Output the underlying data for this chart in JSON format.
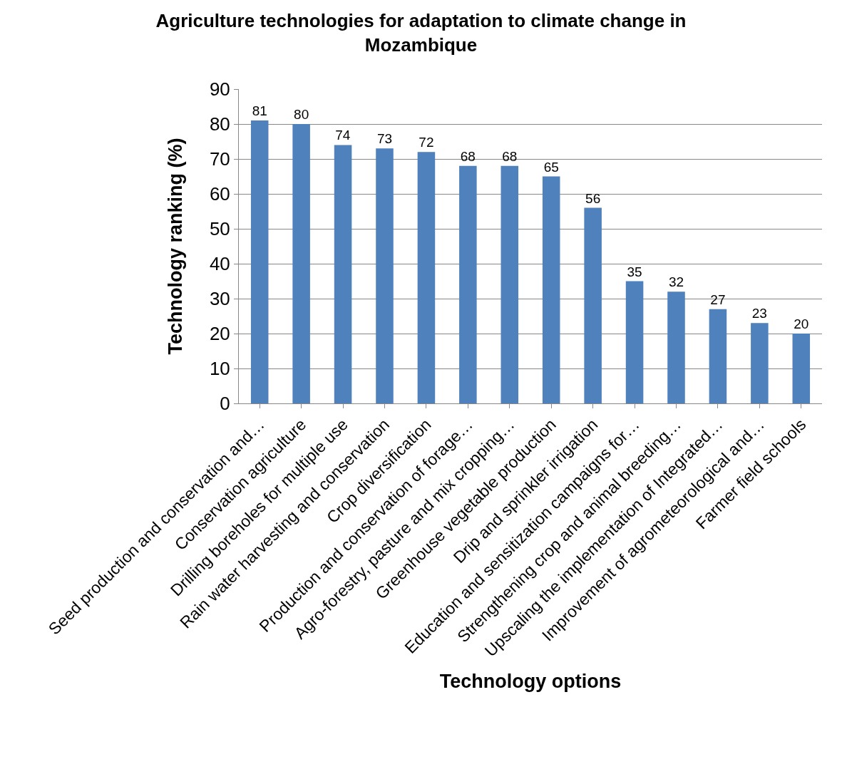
{
  "chart_data": {
    "type": "bar",
    "title": "Agriculture technologies for adaptation to climate change in Mozambique",
    "xlabel": "Technology options",
    "ylabel": "Technology ranking (%)",
    "categories": [
      "Seed production and conservation and…",
      "Conservation agriculture",
      "Drilling boreholes for multiple use",
      "Rain water harvesting and conservation",
      "Crop diversification",
      "Production and conservation of forage…",
      "Agro-forestry, pasture and mix cropping…",
      "Greenhouse vegetable production",
      "Drip and sprinkler irrigation",
      "Education and sensitization campaigns for…",
      "Strengthening crop and animal breeding…",
      "Upscaling the implementation of Integrated…",
      "Improvement of agrometeorological and…",
      "Farmer field schools"
    ],
    "values": [
      81,
      80,
      74,
      73,
      72,
      68,
      68,
      65,
      56,
      35,
      32,
      27,
      23,
      20
    ],
    "color": "#4f81bd",
    "ylim": [
      0,
      90
    ],
    "yticks": [
      0,
      10,
      20,
      30,
      40,
      50,
      60,
      70,
      80,
      90
    ],
    "grid": "y",
    "data_labels": true
  }
}
